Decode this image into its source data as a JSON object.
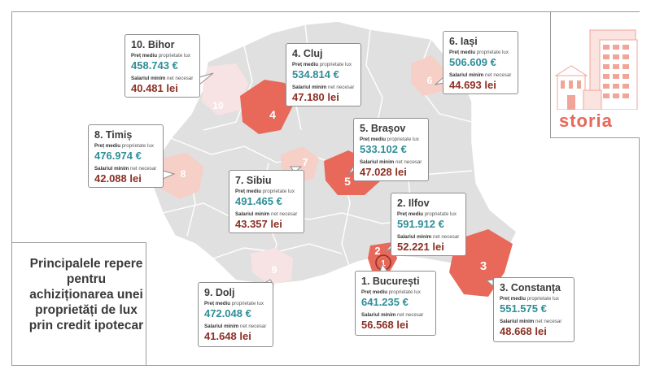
{
  "labels": {
    "price_label_bold": "Preț mediu",
    "price_label_rest": " proprietate lux",
    "salary_label_bold": "Salariul minim",
    "salary_label_rest": " net necesar"
  },
  "title": "Principalele repere pentru achiziționarea unei proprietăți de lux prin credit ipotecar",
  "logo": "storia",
  "colors": {
    "price": "#2f8e98",
    "salary": "#8c3024",
    "region_base": "#e0e0e0",
    "region_top": "#e8685a",
    "region_mid": "#f0a598",
    "region_light": "#f6cfc7",
    "region_faint": "#f7e3e4"
  },
  "region_markers": [
    "1",
    "2",
    "3",
    "4",
    "5",
    "6",
    "7",
    "8",
    "9",
    "10"
  ],
  "cards": [
    {
      "name": "10. Bihor",
      "price": "458.743 €",
      "salary": "40.481 lei"
    },
    {
      "name": "4. Cluj",
      "price": "534.814 €",
      "salary": "47.180 lei"
    },
    {
      "name": "6. Iași",
      "price": "506.609 €",
      "salary": "44.693 lei"
    },
    {
      "name": "8. Timiș",
      "price": "476.974 €",
      "salary": "42.088 lei"
    },
    {
      "name": "5. Brașov",
      "price": "533.102 €",
      "salary": "47.028 lei"
    },
    {
      "name": "7. Sibiu",
      "price": "491.465 €",
      "salary": "43.357 lei"
    },
    {
      "name": "2. Ilfov",
      "price": "591.912 €",
      "salary": "52.221 lei"
    },
    {
      "name": "1. București",
      "price": "641.235 €",
      "salary": "56.568 lei"
    },
    {
      "name": "9. Dolj",
      "price": "472.048 €",
      "salary": "41.648 lei"
    },
    {
      "name": "3. Constanța",
      "price": "551.575 €",
      "salary": "48.668 lei"
    }
  ]
}
